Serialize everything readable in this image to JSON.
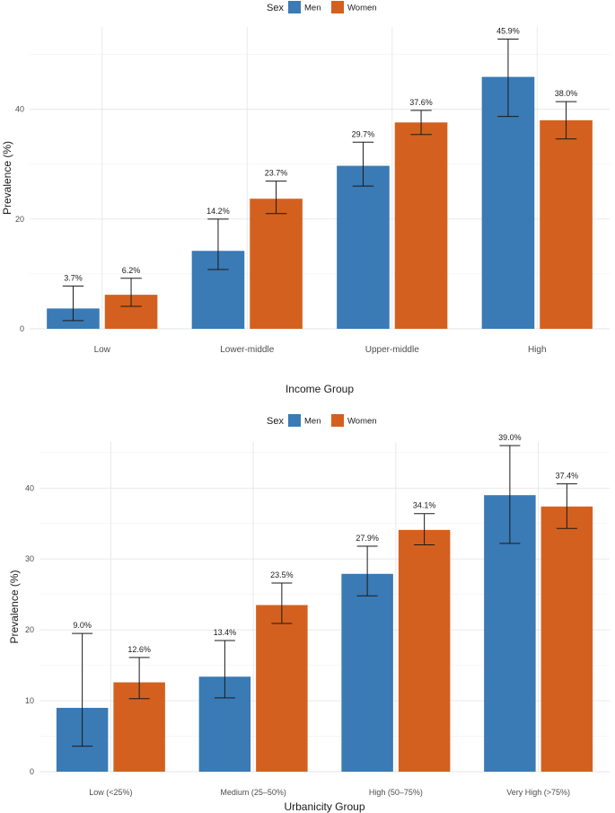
{
  "colors": {
    "men": "#3a7ab5",
    "women": "#d4601f"
  },
  "chart_data": [
    {
      "type": "bar",
      "xlabel": "Income Group",
      "ylabel": "Prevalence (%)",
      "legend_title": "Sex",
      "legend_position": "top",
      "ylim": [
        0,
        55
      ],
      "yticks": [
        0,
        20,
        40
      ],
      "categories": [
        "Low",
        "Lower-middle",
        "Upper-middle",
        "High"
      ],
      "series": [
        {
          "name": "Men",
          "values": [
            3.7,
            14.2,
            29.7,
            45.9
          ],
          "ci_low": [
            1.5,
            10.8,
            26.0,
            38.7
          ],
          "ci_high": [
            7.8,
            20.0,
            34.0,
            52.8
          ],
          "labels": [
            "3.7%",
            "14.2%",
            "29.7%",
            "45.9%"
          ]
        },
        {
          "name": "Women",
          "values": [
            6.2,
            23.7,
            37.6,
            38.0
          ],
          "ci_low": [
            4.1,
            21.0,
            35.4,
            34.6
          ],
          "ci_high": [
            9.2,
            26.9,
            39.8,
            41.4
          ],
          "labels": [
            "6.2%",
            "23.7%",
            "37.6%",
            "38.0%"
          ]
        }
      ]
    },
    {
      "type": "bar",
      "xlabel": "Urbanicity Group",
      "ylabel": "Prevalence (%)",
      "legend_title": "Sex",
      "legend_position": "top",
      "ylim": [
        0,
        46.5
      ],
      "yticks": [
        0,
        10,
        20,
        30,
        40
      ],
      "categories": [
        "Low (<25%)",
        "Medium (25–50%)",
        "High (50–75%)",
        "Very High (>75%)"
      ],
      "series": [
        {
          "name": "Men",
          "values": [
            9.0,
            13.4,
            27.9,
            39.0
          ],
          "ci_low": [
            3.6,
            10.4,
            24.8,
            32.2
          ],
          "ci_high": [
            19.5,
            18.5,
            31.8,
            46.0
          ],
          "labels": [
            "9.0%",
            "13.4%",
            "27.9%",
            "39.0%"
          ]
        },
        {
          "name": "Women",
          "values": [
            12.6,
            23.5,
            34.1,
            37.4
          ],
          "ci_low": [
            10.3,
            20.9,
            32.0,
            34.3
          ],
          "ci_high": [
            16.1,
            26.6,
            36.4,
            40.6
          ],
          "labels": [
            "12.6%",
            "23.5%",
            "34.1%",
            "37.4%"
          ]
        }
      ]
    }
  ]
}
